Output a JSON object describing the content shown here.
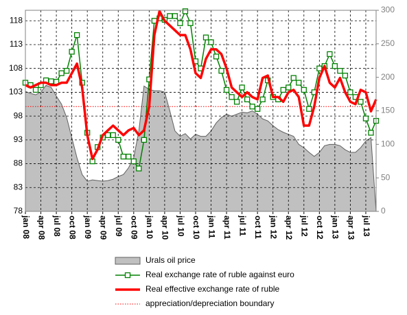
{
  "chart_data": {
    "type": "line",
    "categories": [
      "jan 08",
      null,
      null,
      "apr 08",
      null,
      null,
      "jul 08",
      null,
      null,
      "oct 08",
      null,
      null,
      "jan 09",
      null,
      null,
      "apr 09",
      null,
      null,
      "jul 09",
      null,
      null,
      "oct 09",
      null,
      null,
      "jan 10",
      null,
      null,
      "apr 10",
      null,
      null,
      "jul 10",
      null,
      null,
      "oct 10",
      null,
      null,
      "jan 11",
      null,
      null,
      "apr 11",
      null,
      null,
      "jul 11",
      null,
      null,
      "oct 11",
      null,
      null,
      "jan 12",
      null,
      null,
      "apr 12",
      null,
      null,
      "jul 12",
      null,
      null,
      "oct 12",
      null,
      null,
      "jan 13",
      null,
      null,
      "apr 13",
      null,
      null,
      "jul 13",
      null,
      null
    ],
    "series": [
      {
        "name": "Urals oil price",
        "color": "#c0c0c0",
        "axis": "y2",
        "kind": "area",
        "values": [
          179,
          176,
          174,
          178,
          188,
          185,
          172,
          160,
          140,
          110,
          80,
          55,
          45,
          47,
          46,
          45,
          46,
          48,
          52,
          55,
          65,
          80,
          120,
          187,
          182,
          180,
          180,
          178,
          150,
          120,
          112,
          116,
          108,
          115,
          112,
          112,
          120,
          132,
          140,
          145,
          142,
          145,
          148,
          147,
          150,
          145,
          138,
          135,
          128,
          122,
          118,
          115,
          112,
          100,
          95,
          88,
          82,
          88,
          98,
          100,
          100,
          98,
          92,
          88,
          88,
          95,
          105,
          110,
          0
        ]
      },
      {
        "name": "Real exchange rate of ruble against euro",
        "color": "#008000",
        "kind": "marker-line",
        "values": [
          105,
          104.5,
          103.5,
          104.5,
          105.5,
          105.3,
          105.2,
          107,
          107.5,
          111.5,
          115,
          105,
          94.5,
          88.5,
          91.5,
          93.5,
          94,
          94,
          93,
          89.5,
          89.5,
          88.5,
          87,
          93,
          105.7,
          118,
          118.5,
          118.2,
          119,
          119,
          117.5,
          120,
          117.5,
          109.5,
          108,
          114.5,
          113.5,
          110.5,
          107.5,
          103.5,
          102,
          101,
          104,
          101.5,
          100,
          99.5,
          101.5,
          105.5,
          102,
          101.5,
          103.5,
          104,
          106,
          105,
          103.5,
          99.5,
          103,
          108,
          108.5,
          111,
          108.5,
          107.5,
          106.5,
          103,
          102,
          101,
          97.5,
          94.5,
          97
        ]
      },
      {
        "name": "Real effective exchange rate of ruble",
        "color": "#ff0000",
        "kind": "thick-line",
        "values": [
          104.5,
          104,
          104.5,
          105,
          105,
          104.5,
          104.5,
          105,
          105,
          107,
          109,
          104,
          94,
          89,
          91,
          94,
          95,
          96,
          95,
          94,
          95,
          95.5,
          94,
          95,
          100,
          115,
          120,
          118,
          117,
          116,
          115,
          115,
          112,
          107,
          106,
          110,
          112,
          112,
          111,
          108,
          104,
          103,
          102,
          103,
          102,
          101.5,
          106,
          106.5,
          102,
          102,
          101,
          103,
          103.5,
          102,
          96,
          96,
          100,
          106,
          108.5,
          105,
          104,
          106,
          103,
          101,
          100.5,
          103.5,
          103,
          99,
          101.5
        ]
      }
    ],
    "boundary": {
      "name": "appreciation/depreciation boundary",
      "value": 100,
      "color": "#ff0000"
    },
    "ylim": [
      78,
      120.2
    ],
    "yticks": [
      78,
      83,
      88,
      93,
      98,
      103,
      108,
      113,
      118
    ],
    "y2lim": [
      0,
      300
    ],
    "y2ticks": [
      0,
      50,
      100,
      150,
      200,
      250,
      300
    ],
    "grid": true,
    "legend": "bottom"
  }
}
